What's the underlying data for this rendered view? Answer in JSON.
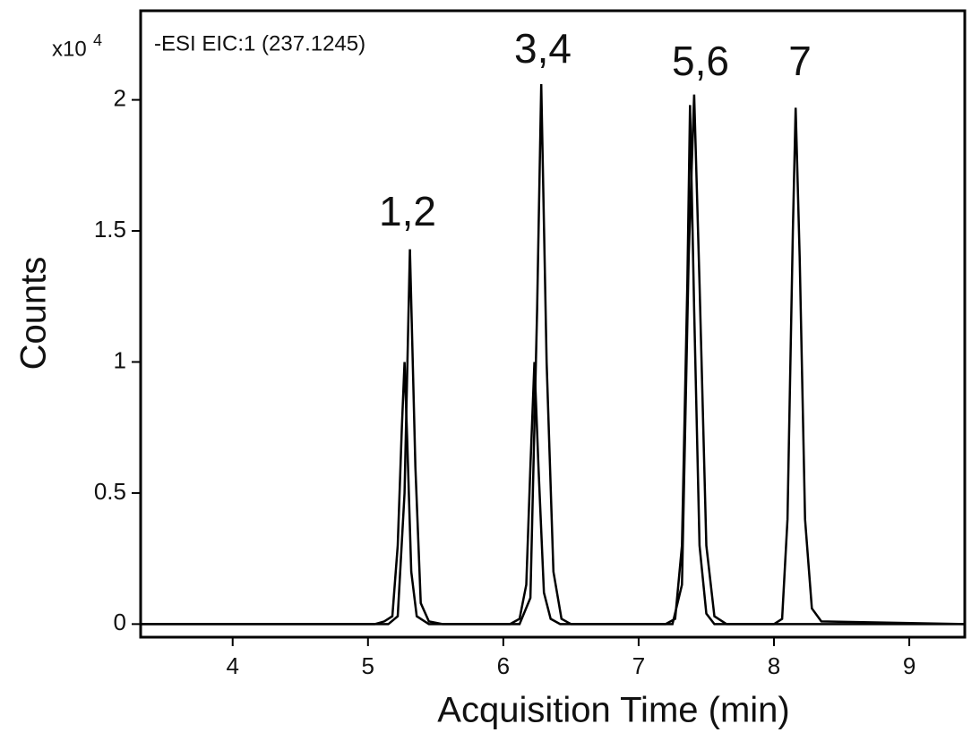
{
  "chart_data": {
    "type": "line",
    "y_axis_label": "Counts",
    "x_axis_label": "Acquisition Time (min)",
    "y_multiplier": {
      "base": "x10",
      "exponent": "4"
    },
    "subtitle": "-ESI  EIC:1  (237.1245)",
    "annotations": [
      "1,2",
      "3,4",
      "5,6",
      "7"
    ],
    "xlim": [
      3.32,
      9.41
    ],
    "xticks": [
      4,
      5,
      6,
      7,
      8,
      9
    ],
    "ylim": [
      -0.05,
      2.34
    ],
    "yticks": [
      0,
      0.5,
      1,
      1.5,
      2
    ],
    "grid": false,
    "series": [
      {
        "color": "#000000",
        "x": [
          3.32,
          5.05,
          5.12,
          5.18,
          5.22,
          5.25,
          5.27,
          5.29,
          5.32,
          5.36,
          5.45,
          6.05,
          6.12,
          6.17,
          6.2,
          6.23,
          6.26,
          6.3,
          6.35,
          6.42,
          7.2,
          7.27,
          7.32,
          7.36,
          7.38,
          7.41,
          7.45,
          7.5,
          7.56,
          8.0,
          8.06,
          8.1,
          8.14,
          8.16,
          8.19,
          8.23,
          8.28,
          8.35,
          9.41
        ],
        "values": [
          0,
          0,
          0.01,
          0.03,
          0.3,
          0.75,
          1.0,
          0.7,
          0.2,
          0.03,
          0,
          0,
          0.02,
          0.15,
          0.6,
          1.0,
          0.6,
          0.12,
          0.02,
          0,
          0,
          0.02,
          0.3,
          1.3,
          1.98,
          1.2,
          0.3,
          0.04,
          0,
          0,
          0.02,
          0.4,
          1.5,
          1.97,
          1.4,
          0.4,
          0.06,
          0.01,
          0
        ]
      },
      {
        "color": "#000000",
        "x": [
          3.32,
          5.15,
          5.22,
          5.27,
          5.31,
          5.35,
          5.39,
          5.45,
          5.55,
          6.12,
          6.2,
          6.25,
          6.28,
          6.32,
          6.37,
          6.43,
          6.5,
          7.25,
          7.32,
          7.37,
          7.41,
          7.45,
          7.5,
          7.56,
          7.65,
          9.41
        ],
        "values": [
          0,
          0,
          0.03,
          0.5,
          1.43,
          0.6,
          0.08,
          0.01,
          0,
          0,
          0.1,
          1.2,
          2.06,
          1.0,
          0.2,
          0.02,
          0,
          0,
          0.15,
          1.4,
          2.02,
          1.3,
          0.3,
          0.03,
          0,
          0
        ]
      }
    ]
  }
}
